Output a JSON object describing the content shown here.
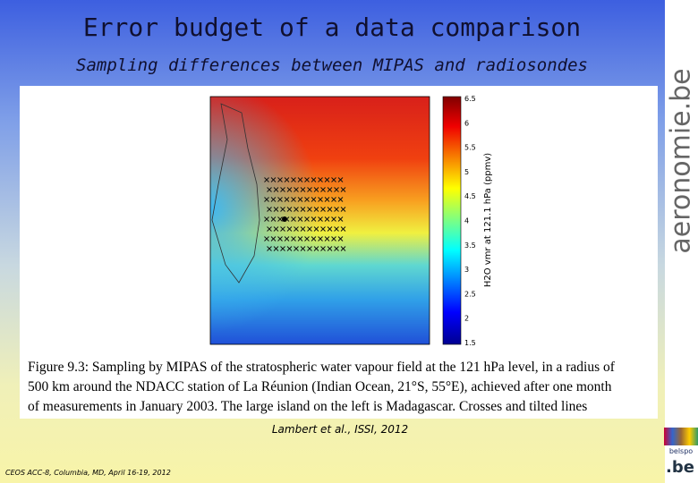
{
  "header": {
    "title": "Error budget of a data comparison",
    "subtitle": "Sampling differences between MIPAS and radiosondes"
  },
  "figure": {
    "colorbar": {
      "label": "H2O vmr at 121.1 hPa (ppmv)",
      "ticks": [
        "6.5",
        "6",
        "5.5",
        "5",
        "4.5",
        "4",
        "3.5",
        "3",
        "2.5",
        "2",
        "1.5"
      ]
    },
    "caption": [
      "Figure 9.3:  Sampling by MIPAS of the stratospheric water vapour field at the 121 hPa level, in a radius of",
      "500 km around the NDACC station of La Réunion (Indian Ocean, 21°S, 55°E), achieved after one month",
      "of measurements in January 2003.  The large island on the left is Madagascar.  Crosses and tilted lines"
    ],
    "credit": "Lambert et al., ISSI, 2012"
  },
  "footer": {
    "text": "CEOS ACC-8, Columbia, MD, April 16-19, 2012"
  },
  "sidebar": {
    "logo": "aeronomie.be",
    "agency": "belspo",
    "domain": ".be"
  }
}
